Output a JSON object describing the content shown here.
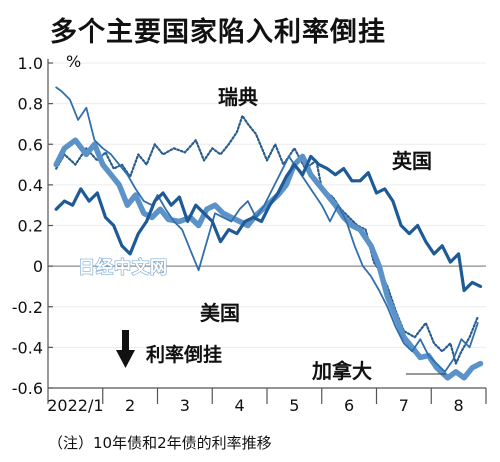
{
  "title": "多个主要国家陷入利率倒挂",
  "note": "（注）10年债和2年债的利率推移",
  "watermark": "日经中文网",
  "inversion_label": "利率倒挂",
  "chart_data": {
    "type": "line",
    "unit": "%",
    "ylim": [
      -0.6,
      1.0
    ],
    "yticks": [
      1.0,
      0.8,
      0.6,
      0.4,
      0.2,
      0,
      -0.2,
      -0.4,
      -0.6
    ],
    "ytick_labels": [
      "1.0",
      "0.8",
      "0.6",
      "0.4",
      "0.2",
      "0",
      "-0.2",
      "-0.4",
      "-0.6"
    ],
    "xlim": [
      1,
      9
    ],
    "xtick_labels": [
      {
        "label": "2022/1",
        "x": 1.5
      },
      {
        "label": "2",
        "x": 2.5
      },
      {
        "label": "3",
        "x": 3.5
      },
      {
        "label": "4",
        "x": 4.5
      },
      {
        "label": "5",
        "x": 5.5
      },
      {
        "label": "6",
        "x": 6.5
      },
      {
        "label": "7",
        "x": 7.5
      },
      {
        "label": "8",
        "x": 8.5
      }
    ],
    "colors": {
      "uk": "#1d5a96",
      "us": "#5b93c9",
      "canada": "#2f6fae",
      "sweden": "#2a5c8e"
    },
    "series": [
      {
        "key": "sweden",
        "name": "瑞典",
        "style": "dotted",
        "x": [
          1.15,
          1.3,
          1.5,
          1.7,
          1.9,
          2.05,
          2.2,
          2.35,
          2.5,
          2.65,
          2.8,
          2.95,
          3.1,
          3.3,
          3.5,
          3.7,
          3.85,
          4.0,
          4.15,
          4.3,
          4.45,
          4.55,
          4.65,
          4.8,
          5.0,
          5.15,
          5.3,
          5.5,
          5.7,
          5.9,
          6.0,
          6.2,
          6.35,
          6.5,
          6.65,
          6.8,
          6.95,
          7.05,
          7.2,
          7.35,
          7.5,
          7.7,
          7.9,
          8.05,
          8.2,
          8.35,
          8.45,
          8.55,
          8.7,
          8.85
        ],
        "y": [
          0.48,
          0.55,
          0.5,
          0.58,
          0.52,
          0.56,
          0.48,
          0.5,
          0.44,
          0.55,
          0.5,
          0.6,
          0.55,
          0.58,
          0.56,
          0.62,
          0.52,
          0.58,
          0.55,
          0.6,
          0.66,
          0.74,
          0.7,
          0.65,
          0.52,
          0.6,
          0.5,
          0.58,
          0.48,
          0.52,
          0.38,
          0.34,
          0.28,
          0.24,
          0.2,
          0.18,
          0.02,
          -0.02,
          -0.1,
          -0.22,
          -0.32,
          -0.35,
          -0.28,
          -0.38,
          -0.42,
          -0.38,
          -0.48,
          -0.42,
          -0.35,
          -0.25
        ]
      },
      {
        "key": "us",
        "name": "美国",
        "style": "thick",
        "x": [
          1.15,
          1.3,
          1.5,
          1.7,
          1.85,
          2.0,
          2.15,
          2.3,
          2.45,
          2.6,
          2.75,
          2.9,
          3.05,
          3.2,
          3.4,
          3.6,
          3.75,
          3.9,
          4.05,
          4.2,
          4.35,
          4.5,
          4.65,
          4.8,
          5.0,
          5.2,
          5.35,
          5.5,
          5.65,
          5.8,
          5.95,
          6.1,
          6.25,
          6.4,
          6.55,
          6.7,
          6.9,
          7.05,
          7.2,
          7.35,
          7.5,
          7.65,
          7.8,
          7.95,
          8.1,
          8.3,
          8.45,
          8.6,
          8.75,
          8.9
        ],
        "y": [
          0.5,
          0.58,
          0.62,
          0.55,
          0.6,
          0.5,
          0.45,
          0.4,
          0.3,
          0.35,
          0.26,
          0.24,
          0.28,
          0.23,
          0.22,
          0.24,
          0.2,
          0.28,
          0.3,
          0.26,
          0.24,
          0.22,
          0.2,
          0.25,
          0.3,
          0.35,
          0.4,
          0.5,
          0.54,
          0.45,
          0.4,
          0.35,
          0.3,
          0.24,
          0.2,
          0.18,
          0.1,
          0.0,
          -0.15,
          -0.25,
          -0.35,
          -0.4,
          -0.45,
          -0.44,
          -0.5,
          -0.55,
          -0.52,
          -0.55,
          -0.5,
          -0.48
        ]
      },
      {
        "key": "canada",
        "name": "加拿大",
        "style": "thin",
        "x": [
          1.15,
          1.25,
          1.4,
          1.55,
          1.7,
          1.85,
          2.0,
          2.15,
          2.3,
          2.45,
          2.6,
          2.75,
          2.9,
          3.0,
          3.15,
          3.3,
          3.45,
          3.6,
          3.75,
          3.9,
          4.05,
          4.2,
          4.35,
          4.5,
          4.65,
          4.8,
          4.95,
          5.1,
          5.25,
          5.4,
          5.55,
          5.7,
          5.85,
          6.0,
          6.15,
          6.3,
          6.45,
          6.6,
          6.75,
          6.9,
          7.05,
          7.2,
          7.35,
          7.5,
          7.65,
          7.8,
          7.95,
          8.1,
          8.25,
          8.4,
          8.55,
          8.7,
          8.85
        ],
        "y": [
          0.88,
          0.86,
          0.82,
          0.72,
          0.78,
          0.62,
          0.58,
          0.55,
          0.5,
          0.45,
          0.38,
          0.32,
          0.3,
          0.35,
          0.28,
          0.22,
          0.18,
          0.08,
          -0.02,
          0.12,
          0.26,
          0.24,
          0.22,
          0.28,
          0.32,
          0.24,
          0.3,
          0.38,
          0.46,
          0.54,
          0.48,
          0.42,
          0.36,
          0.3,
          0.22,
          0.3,
          0.22,
          0.1,
          0.0,
          -0.05,
          -0.12,
          -0.2,
          -0.3,
          -0.38,
          -0.42,
          -0.36,
          -0.44,
          -0.48,
          -0.52,
          -0.46,
          -0.36,
          -0.4,
          -0.28
        ]
      },
      {
        "key": "uk",
        "name": "英国",
        "style": "medium",
        "x": [
          1.15,
          1.3,
          1.45,
          1.6,
          1.75,
          1.9,
          2.05,
          2.2,
          2.35,
          2.5,
          2.65,
          2.8,
          2.95,
          3.1,
          3.25,
          3.4,
          3.55,
          3.7,
          3.85,
          4.0,
          4.15,
          4.3,
          4.45,
          4.6,
          4.75,
          4.9,
          5.05,
          5.2,
          5.35,
          5.5,
          5.65,
          5.8,
          5.95,
          6.1,
          6.25,
          6.4,
          6.55,
          6.7,
          6.85,
          7.0,
          7.15,
          7.3,
          7.45,
          7.6,
          7.75,
          7.9,
          8.05,
          8.2,
          8.35,
          8.5,
          8.6,
          8.75,
          8.9
        ],
        "y": [
          0.28,
          0.32,
          0.3,
          0.38,
          0.32,
          0.36,
          0.24,
          0.2,
          0.1,
          0.06,
          0.16,
          0.22,
          0.32,
          0.36,
          0.3,
          0.34,
          0.22,
          0.3,
          0.26,
          0.22,
          0.12,
          0.18,
          0.16,
          0.22,
          0.24,
          0.22,
          0.3,
          0.36,
          0.44,
          0.5,
          0.45,
          0.54,
          0.5,
          0.48,
          0.45,
          0.48,
          0.42,
          0.42,
          0.46,
          0.36,
          0.38,
          0.32,
          0.2,
          0.16,
          0.2,
          0.12,
          0.06,
          0.1,
          0.02,
          0.06,
          -0.12,
          -0.08,
          -0.1
        ]
      }
    ]
  }
}
